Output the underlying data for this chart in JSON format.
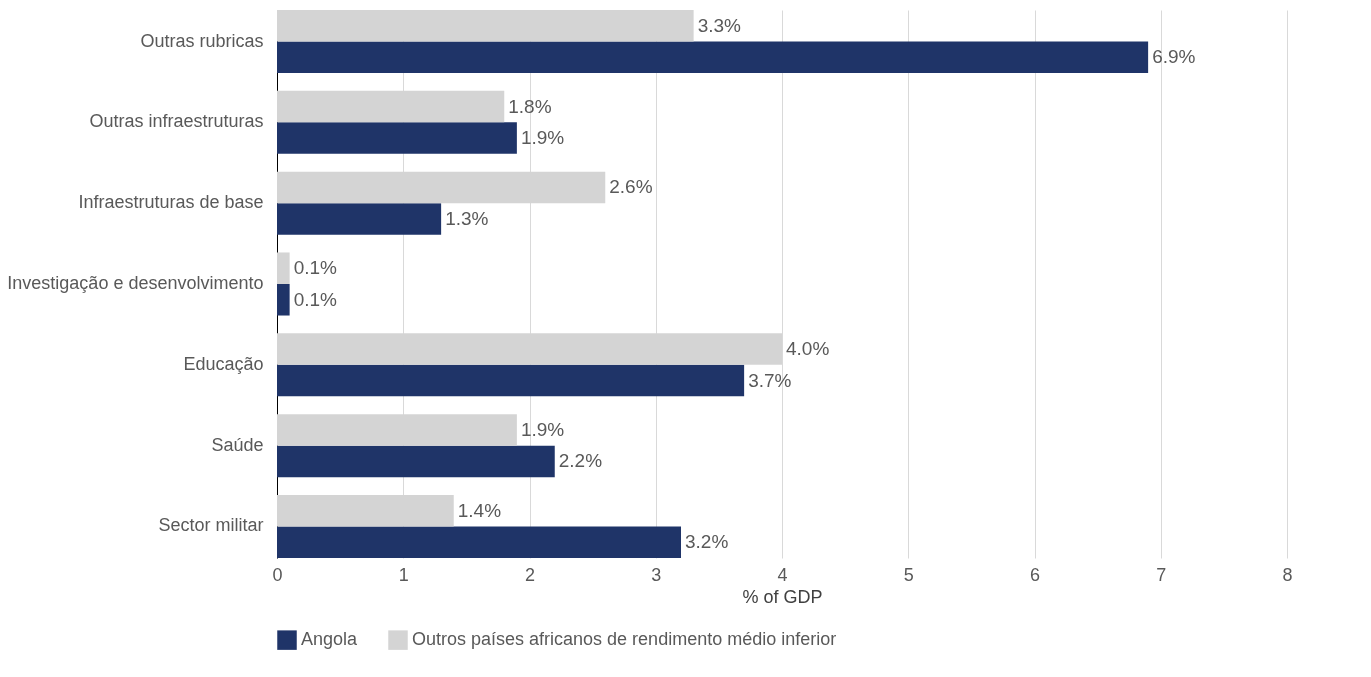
{
  "chart_data": {
    "type": "bar",
    "orientation": "horizontal",
    "categories": [
      "Outras rubricas",
      "Outras infraestruturas",
      "Infraestruturas de base",
      "Investigação e desenvolvimento",
      "Educação",
      "Saúde",
      "Sector militar"
    ],
    "series": [
      {
        "name": "Angola",
        "color": "#1f3468",
        "values": [
          6.9,
          1.9,
          1.3,
          0.1,
          3.7,
          2.2,
          3.2
        ],
        "value_labels": [
          "6.9%",
          "1.9%",
          "1.3%",
          "0.1%",
          "3.7%",
          "2.2%",
          "3.2%"
        ]
      },
      {
        "name": "Outros países africanos de rendimento médio inferior",
        "color": "#d4d4d4",
        "values": [
          3.3,
          1.8,
          2.6,
          0.1,
          4.0,
          1.9,
          1.4
        ],
        "value_labels": [
          "3.3%",
          "1.8%",
          "2.6%",
          "0.1%",
          "4.0%",
          "1.9%",
          "1.4%"
        ]
      }
    ],
    "xlabel": "% of GDP",
    "xlim": [
      0,
      8
    ],
    "xticks": [
      0,
      1,
      2,
      3,
      4,
      5,
      6,
      7,
      8
    ],
    "grid": "x",
    "legend": "bottom"
  }
}
